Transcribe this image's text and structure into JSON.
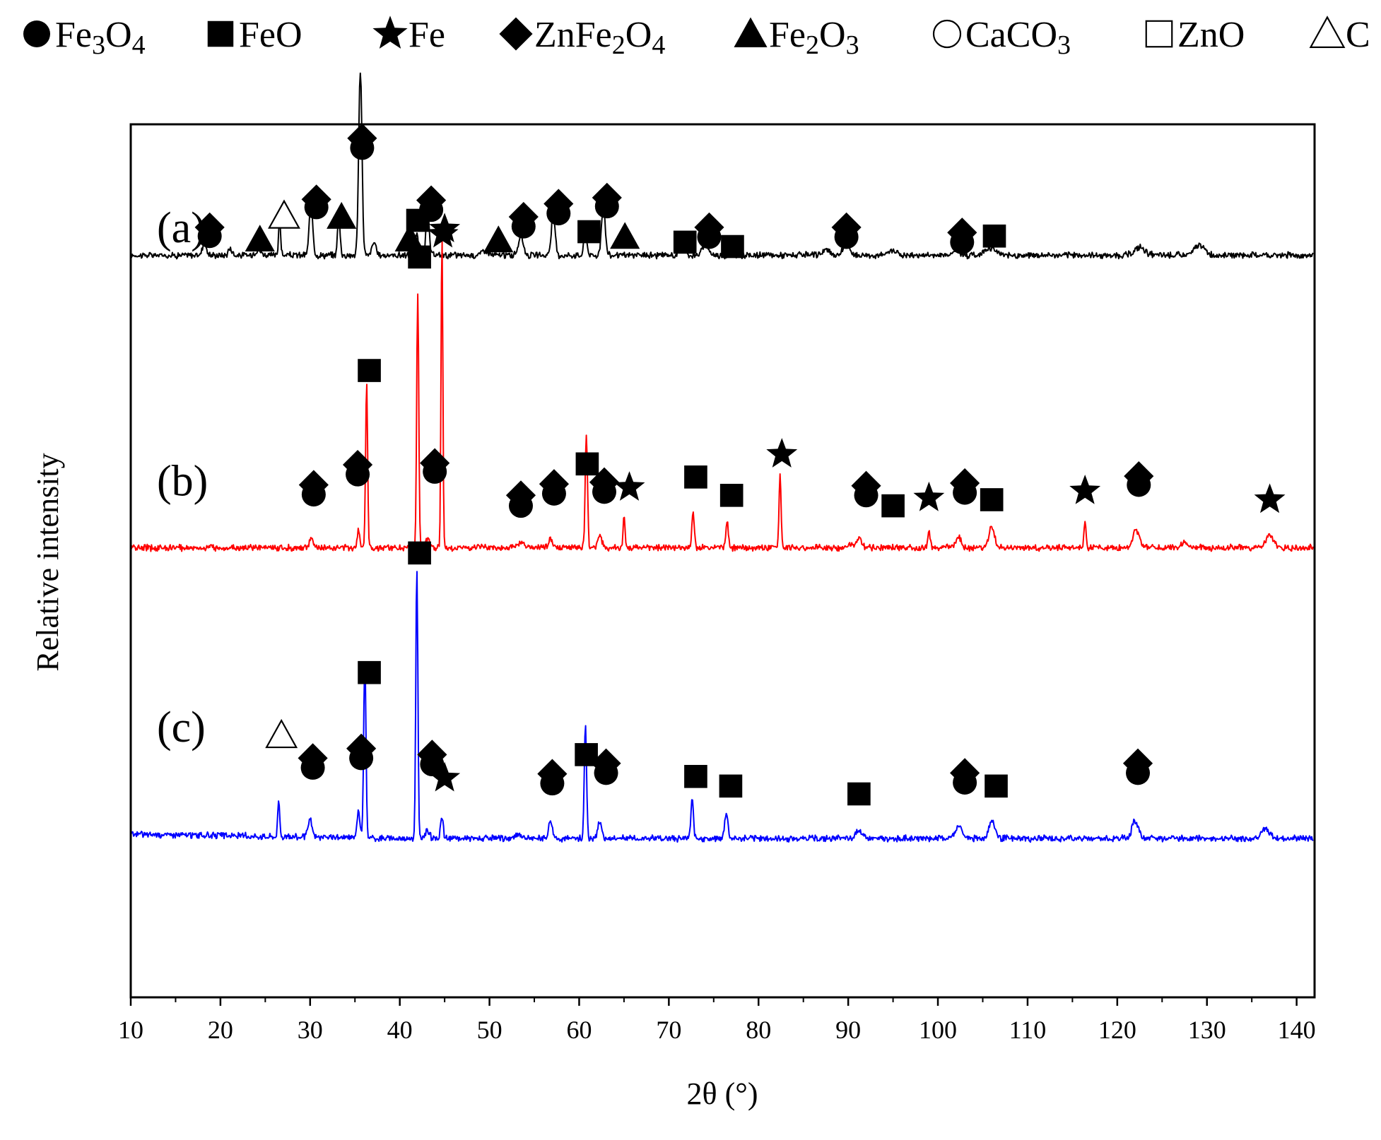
{
  "chart_data": {
    "type": "line",
    "title": "",
    "xlabel": "2θ (°)",
    "ylabel": "Relative intensity",
    "xlim": [
      10,
      142
    ],
    "ylim": [
      0,
      100
    ],
    "x_ticks": [
      "10",
      "20",
      "30",
      "40",
      "50",
      "60",
      "70",
      "80",
      "90",
      "100",
      "110",
      "120",
      "130",
      "140"
    ],
    "y_ticks": [],
    "grid": false,
    "legend_position": "top",
    "legend": [
      {
        "symbol": "filled-circle",
        "label": "Fe3O4",
        "base": "Fe",
        "sub1": "3",
        "mid": "O",
        "sub2": "4"
      },
      {
        "symbol": "filled-square",
        "label": "FeO",
        "base": "FeO",
        "sub1": "",
        "mid": "",
        "sub2": ""
      },
      {
        "symbol": "filled-star",
        "label": "Fe",
        "base": "Fe",
        "sub1": "",
        "mid": "",
        "sub2": ""
      },
      {
        "symbol": "filled-diamond",
        "label": "ZnFe2O4",
        "base": "ZnFe",
        "sub1": "2",
        "mid": "O",
        "sub2": "4"
      },
      {
        "symbol": "filled-triangle",
        "label": "Fe2O3",
        "base": "Fe",
        "sub1": "2",
        "mid": "O",
        "sub2": "3"
      },
      {
        "symbol": "open-circle",
        "label": "CaCO3",
        "base": "CaCO",
        "sub1": "3",
        "mid": "",
        "sub2": ""
      },
      {
        "symbol": "open-square",
        "label": "ZnO",
        "base": "ZnO",
        "sub1": "",
        "mid": "",
        "sub2": ""
      },
      {
        "symbol": "open-triangle",
        "label": "C",
        "base": "C",
        "sub1": "",
        "mid": "",
        "sub2": ""
      }
    ],
    "series": [
      {
        "name": "(a)",
        "color": "#000000",
        "baseline": 85.0,
        "peaks": [
          [
            18.2,
            1.5,
            0.3
          ],
          [
            21.1,
            0.8,
            0.3
          ],
          [
            24.2,
            0.6,
            0.5
          ],
          [
            26.6,
            4.5,
            0.15
          ],
          [
            30.1,
            6,
            0.28
          ],
          [
            33.2,
            4.5,
            0.2
          ],
          [
            35.6,
            21,
            0.26
          ],
          [
            37.1,
            1.5,
            0.3
          ],
          [
            41.9,
            2.3,
            0.22
          ],
          [
            43.1,
            5,
            0.25
          ],
          [
            49.5,
            0.6,
            0.5
          ],
          [
            53.5,
            2.2,
            0.4
          ],
          [
            57.1,
            4.5,
            0.3
          ],
          [
            60.7,
            2.5,
            0.25
          ],
          [
            62.7,
            6,
            0.28
          ],
          [
            71.5,
            0.6,
            0.5
          ],
          [
            74.1,
            1.2,
            0.5
          ],
          [
            87.5,
            0.6,
            0.6
          ],
          [
            89.8,
            1.3,
            0.5
          ],
          [
            95,
            0.6,
            0.6
          ],
          [
            102,
            0.6,
            0.6
          ],
          [
            105.8,
            0.9,
            0.8
          ],
          [
            122.5,
            0.9,
            0.8
          ],
          [
            129.2,
            1.2,
            0.8
          ]
        ],
        "markers": [
          {
            "x": 18.8,
            "y": 88.2,
            "symbols": [
              "filled-diamond"
            ]
          },
          {
            "x": 18.8,
            "y": 87.2,
            "symbols": [
              "filled-circle"
            ]
          },
          {
            "x": 24.4,
            "y": 86.8,
            "symbols": [
              "filled-triangle"
            ]
          },
          {
            "x": 27.1,
            "y": 89.5,
            "symbols": [
              "open-triangle"
            ]
          },
          {
            "x": 30.7,
            "y": 91.4,
            "symbols": [
              "filled-diamond"
            ]
          },
          {
            "x": 30.7,
            "y": 90.5,
            "symbols": [
              "filled-circle"
            ]
          },
          {
            "x": 33.5,
            "y": 89.4,
            "symbols": [
              "filled-triangle"
            ]
          },
          {
            "x": 35.8,
            "y": 98.4,
            "symbols": [
              "filled-diamond"
            ]
          },
          {
            "x": 35.8,
            "y": 97.3,
            "symbols": [
              "filled-circle"
            ]
          },
          {
            "x": 41.1,
            "y": 86.8,
            "symbols": [
              "filled-triangle"
            ]
          },
          {
            "x": 42.0,
            "y": 89.0,
            "symbols": [
              "filled-square"
            ]
          },
          {
            "x": 43.5,
            "y": 91.3,
            "symbols": [
              "filled-diamond"
            ]
          },
          {
            "x": 43.5,
            "y": 90.2,
            "symbols": [
              "filled-circle"
            ]
          },
          {
            "x": 44.8,
            "y": 87.4,
            "symbols": [
              "filled-star"
            ]
          },
          {
            "x": 51.0,
            "y": 86.7,
            "symbols": [
              "filled-triangle"
            ]
          },
          {
            "x": 53.8,
            "y": 89.4,
            "symbols": [
              "filled-diamond"
            ]
          },
          {
            "x": 53.8,
            "y": 88.3,
            "symbols": [
              "filled-circle"
            ]
          },
          {
            "x": 57.7,
            "y": 90.9,
            "symbols": [
              "filled-diamond"
            ]
          },
          {
            "x": 57.7,
            "y": 89.8,
            "symbols": [
              "filled-circle"
            ]
          },
          {
            "x": 61.1,
            "y": 87.7,
            "symbols": [
              "filled-square"
            ]
          },
          {
            "x": 63.1,
            "y": 91.6,
            "symbols": [
              "filled-diamond"
            ]
          },
          {
            "x": 63.1,
            "y": 90.6,
            "symbols": [
              "filled-circle"
            ]
          },
          {
            "x": 65.1,
            "y": 87.1,
            "symbols": [
              "filled-triangle"
            ]
          },
          {
            "x": 71.8,
            "y": 86.5,
            "symbols": [
              "filled-square"
            ]
          },
          {
            "x": 74.5,
            "y": 88.2,
            "symbols": [
              "filled-diamond"
            ]
          },
          {
            "x": 74.5,
            "y": 87.1,
            "symbols": [
              "filled-circle"
            ]
          },
          {
            "x": 77.1,
            "y": 86.0,
            "symbols": [
              "filled-square"
            ]
          },
          {
            "x": 89.8,
            "y": 88.2,
            "symbols": [
              "filled-diamond"
            ]
          },
          {
            "x": 89.8,
            "y": 87.1,
            "symbols": [
              "filled-circle"
            ]
          },
          {
            "x": 102.7,
            "y": 87.6,
            "symbols": [
              "filled-diamond"
            ]
          },
          {
            "x": 102.7,
            "y": 86.5,
            "symbols": [
              "filled-circle"
            ]
          },
          {
            "x": 106.3,
            "y": 87.2,
            "symbols": [
              "filled-square"
            ]
          }
        ]
      },
      {
        "name": "(b)",
        "color": "#ff0000",
        "baseline": 51.5,
        "peaks": [
          [
            30.1,
            1,
            0.3
          ],
          [
            35.4,
            2.2,
            0.2
          ],
          [
            36.3,
            19,
            0.16
          ],
          [
            42.0,
            29,
            0.16
          ],
          [
            43.1,
            1,
            0.3
          ],
          [
            44.7,
            36,
            0.14
          ],
          [
            53.5,
            0.5,
            0.5
          ],
          [
            56.8,
            1,
            0.3
          ],
          [
            60.8,
            13,
            0.18
          ],
          [
            62.3,
            1.5,
            0.3
          ],
          [
            65.0,
            4,
            0.14
          ],
          [
            72.7,
            4,
            0.2
          ],
          [
            76.5,
            3,
            0.2
          ],
          [
            82.4,
            8.5,
            0.16
          ],
          [
            90.3,
            0.5,
            0.4
          ],
          [
            91.2,
            1,
            0.4
          ],
          [
            99.0,
            2,
            0.2
          ],
          [
            102.3,
            1.2,
            0.4
          ],
          [
            106,
            2.5,
            0.4
          ],
          [
            116.4,
            3,
            0.16
          ],
          [
            122.1,
            2,
            0.5
          ],
          [
            127.5,
            0.5,
            0.6
          ],
          [
            137,
            1.5,
            0.6
          ]
        ],
        "markers": [
          {
            "x": 45.0,
            "y": 88.0,
            "symbols": [
              "filled-star"
            ]
          },
          {
            "x": 42.2,
            "y": 84.8,
            "symbols": [
              "filled-square"
            ]
          },
          {
            "x": 36.6,
            "y": 71.8,
            "symbols": [
              "filled-square"
            ]
          },
          {
            "x": 60.9,
            "y": 61.1,
            "symbols": [
              "filled-square"
            ]
          },
          {
            "x": 30.4,
            "y": 58.7,
            "symbols": [
              "filled-diamond"
            ]
          },
          {
            "x": 30.4,
            "y": 57.6,
            "symbols": [
              "filled-circle"
            ]
          },
          {
            "x": 35.3,
            "y": 61.0,
            "symbols": [
              "filled-diamond"
            ]
          },
          {
            "x": 35.3,
            "y": 59.9,
            "symbols": [
              "filled-circle"
            ]
          },
          {
            "x": 43.9,
            "y": 61.2,
            "symbols": [
              "filled-diamond"
            ]
          },
          {
            "x": 43.9,
            "y": 60.2,
            "symbols": [
              "filled-circle"
            ]
          },
          {
            "x": 53.5,
            "y": 57.5,
            "symbols": [
              "filled-diamond"
            ]
          },
          {
            "x": 53.5,
            "y": 56.3,
            "symbols": [
              "filled-circle"
            ]
          },
          {
            "x": 57.2,
            "y": 58.8,
            "symbols": [
              "filled-diamond"
            ]
          },
          {
            "x": 57.2,
            "y": 57.7,
            "symbols": [
              "filled-circle"
            ]
          },
          {
            "x": 62.8,
            "y": 59.0,
            "symbols": [
              "filled-diamond"
            ]
          },
          {
            "x": 62.8,
            "y": 57.9,
            "symbols": [
              "filled-circle"
            ]
          },
          {
            "x": 65.6,
            "y": 58.4,
            "symbols": [
              "filled-star"
            ]
          },
          {
            "x": 73.0,
            "y": 59.6,
            "symbols": [
              "filled-square"
            ]
          },
          {
            "x": 77.0,
            "y": 57.5,
            "symbols": [
              "filled-square"
            ]
          },
          {
            "x": 82.6,
            "y": 62.2,
            "symbols": [
              "filled-star"
            ]
          },
          {
            "x": 92.0,
            "y": 58.6,
            "symbols": [
              "filled-diamond"
            ]
          },
          {
            "x": 92.0,
            "y": 57.5,
            "symbols": [
              "filled-circle"
            ]
          },
          {
            "x": 95.0,
            "y": 56.3,
            "symbols": [
              "filled-square"
            ]
          },
          {
            "x": 99.0,
            "y": 57.2,
            "symbols": [
              "filled-star"
            ]
          },
          {
            "x": 103.0,
            "y": 58.9,
            "symbols": [
              "filled-diamond"
            ]
          },
          {
            "x": 103.0,
            "y": 57.8,
            "symbols": [
              "filled-circle"
            ]
          },
          {
            "x": 106.0,
            "y": 57.0,
            "symbols": [
              "filled-square"
            ]
          },
          {
            "x": 116.4,
            "y": 58.0,
            "symbols": [
              "filled-star"
            ]
          },
          {
            "x": 122.4,
            "y": 59.7,
            "symbols": [
              "filled-diamond"
            ]
          },
          {
            "x": 122.4,
            "y": 58.7,
            "symbols": [
              "filled-circle"
            ]
          },
          {
            "x": 137.0,
            "y": 57.0,
            "symbols": [
              "filled-star"
            ]
          }
        ]
      },
      {
        "name": "(c)",
        "color": "#0000ff",
        "baseline": 18.2,
        "peaks": [
          [
            26.5,
            4,
            0.16
          ],
          [
            30.0,
            2,
            0.3
          ],
          [
            35.4,
            3,
            0.25
          ],
          [
            36.1,
            20,
            0.18
          ],
          [
            41.9,
            31,
            0.16
          ],
          [
            43.1,
            1,
            0.3
          ],
          [
            44.7,
            2.5,
            0.2
          ],
          [
            53.3,
            0.5,
            0.5
          ],
          [
            56.8,
            2,
            0.3
          ],
          [
            60.7,
            13,
            0.18
          ],
          [
            62.3,
            2,
            0.3
          ],
          [
            72.6,
            4.5,
            0.2
          ],
          [
            76.4,
            3,
            0.25
          ],
          [
            91.2,
            1,
            0.4
          ],
          [
            102.3,
            1.5,
            0.5
          ],
          [
            106,
            2,
            0.5
          ],
          [
            122,
            2,
            0.5
          ],
          [
            136.5,
            1,
            0.7
          ]
        ],
        "markers": [
          {
            "x": 42.2,
            "y": 50.9,
            "symbols": [
              "filled-square"
            ]
          },
          {
            "x": 36.6,
            "y": 37.2,
            "symbols": [
              "filled-square"
            ]
          },
          {
            "x": 60.8,
            "y": 27.8,
            "symbols": [
              "filled-square"
            ]
          },
          {
            "x": 26.8,
            "y": 30.0,
            "symbols": [
              "open-triangle"
            ]
          },
          {
            "x": 30.3,
            "y": 27.4,
            "symbols": [
              "filled-diamond"
            ]
          },
          {
            "x": 30.3,
            "y": 26.3,
            "symbols": [
              "filled-circle"
            ]
          },
          {
            "x": 35.7,
            "y": 28.5,
            "symbols": [
              "filled-diamond"
            ]
          },
          {
            "x": 35.7,
            "y": 27.4,
            "symbols": [
              "filled-circle"
            ]
          },
          {
            "x": 43.6,
            "y": 27.8,
            "symbols": [
              "filled-diamond"
            ]
          },
          {
            "x": 43.6,
            "y": 26.7,
            "symbols": [
              "filled-circle"
            ]
          },
          {
            "x": 45.0,
            "y": 25.1,
            "symbols": [
              "filled-star"
            ]
          },
          {
            "x": 57.0,
            "y": 25.6,
            "symbols": [
              "filled-diamond"
            ]
          },
          {
            "x": 57.0,
            "y": 24.5,
            "symbols": [
              "filled-circle"
            ]
          },
          {
            "x": 63.0,
            "y": 26.8,
            "symbols": [
              "filled-diamond"
            ]
          },
          {
            "x": 63.0,
            "y": 25.7,
            "symbols": [
              "filled-circle"
            ]
          },
          {
            "x": 73.0,
            "y": 25.3,
            "symbols": [
              "filled-square"
            ]
          },
          {
            "x": 76.9,
            "y": 24.2,
            "symbols": [
              "filled-square"
            ]
          },
          {
            "x": 91.2,
            "y": 23.3,
            "symbols": [
              "filled-square"
            ]
          },
          {
            "x": 103.0,
            "y": 25.7,
            "symbols": [
              "filled-diamond"
            ]
          },
          {
            "x": 103.0,
            "y": 24.6,
            "symbols": [
              "filled-circle"
            ]
          },
          {
            "x": 106.5,
            "y": 24.2,
            "symbols": [
              "filled-square"
            ]
          },
          {
            "x": 122.3,
            "y": 26.8,
            "symbols": [
              "filled-diamond"
            ]
          },
          {
            "x": 122.3,
            "y": 25.7,
            "symbols": [
              "filled-circle"
            ]
          }
        ]
      }
    ]
  }
}
